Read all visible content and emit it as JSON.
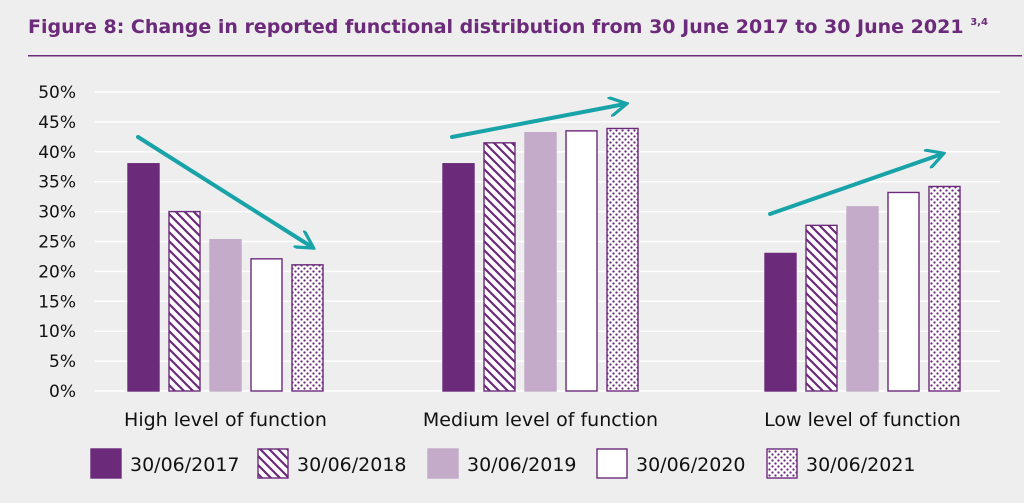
{
  "header": {
    "title": "Figure 8: Change in reported functional distribution from 30 June 2017 to 30 June 2021",
    "title_superscript": "3,4"
  },
  "colors": {
    "background": "#efeeee",
    "title": "#6b2a7a",
    "rule": "#6b2a7a",
    "series_dark": "#6b2a7a",
    "series_light": "#c3abc9",
    "outline": "#6b2a7a",
    "arrow": "#18a3a8",
    "gridline": "#ffffff"
  },
  "chart_data": {
    "type": "bar",
    "categories": [
      "High level of function",
      "Medium level of function",
      "Low level of function"
    ],
    "series": [
      {
        "name": "30/06/2017",
        "values": [
          38,
          38,
          23
        ],
        "style": "solid-dark"
      },
      {
        "name": "30/06/2018",
        "values": [
          30,
          41.5,
          27.7
        ],
        "style": "diagonal-hatch"
      },
      {
        "name": "30/06/2019",
        "values": [
          25.3,
          43.2,
          30.8
        ],
        "style": "solid-light"
      },
      {
        "name": "30/06/2020",
        "values": [
          22.1,
          43.5,
          33.2
        ],
        "style": "white"
      },
      {
        "name": "30/06/2021",
        "values": [
          21.1,
          43.9,
          34.2
        ],
        "style": "dotted"
      }
    ],
    "yticks": [
      "0%",
      "5%",
      "10%",
      "15%",
      "20%",
      "25%",
      "30%",
      "35%",
      "40%",
      "45%",
      "50%"
    ],
    "ylim": [
      0,
      50
    ],
    "grid": true,
    "legend_position": "bottom",
    "trend_arrows": [
      {
        "category": "High level of function",
        "direction": "down"
      },
      {
        "category": "Medium level of function",
        "direction": "up"
      },
      {
        "category": "Low level of function",
        "direction": "up"
      }
    ]
  }
}
